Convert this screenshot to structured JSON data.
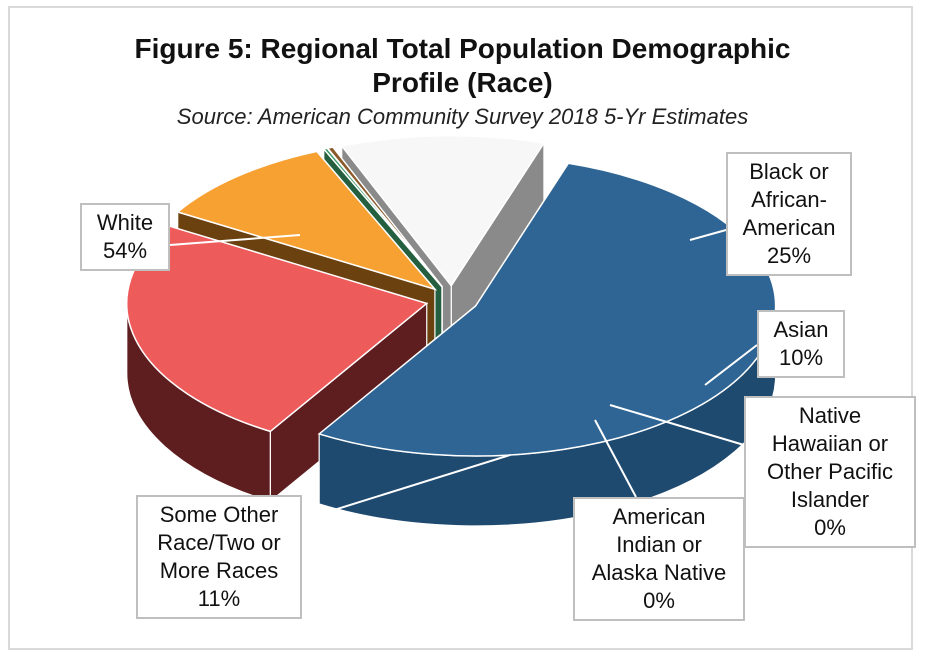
{
  "chart_data": {
    "type": "pie",
    "title": "Figure 5: Regional Total Population Demographic Profile (Race)",
    "title_lines": [
      "Figure 5: Regional Total Population Demographic",
      "Profile (Race)"
    ],
    "subtitle": "Source: American Community Survey 2018 5-Yr Estimates",
    "legend": "none",
    "slices": [
      {
        "key": "white",
        "label_lines": [
          "White",
          "54%"
        ],
        "name": "White",
        "value": 54,
        "percent_label": "54%",
        "color": "#2e6594",
        "side_color": "#1f4a70"
      },
      {
        "key": "black",
        "label_lines": [
          "Black or",
          "African-",
          "American",
          "25%"
        ],
        "name": "Black or African-American",
        "value": 25,
        "percent_label": "25%",
        "color": "#ee5b5b",
        "side_color": "#5e1e20"
      },
      {
        "key": "asian",
        "label_lines": [
          "Asian",
          "10%"
        ],
        "name": "Asian",
        "value": 10,
        "percent_label": "10%",
        "color": "#f7a133",
        "side_color": "#6b420f"
      },
      {
        "key": "nhpi",
        "label_lines": [
          "Native",
          "Hawaiian or",
          "Other Pacific",
          "Islander",
          "0%"
        ],
        "name": "Native Hawaiian or Other Pacific Islander",
        "value": 0.2,
        "percent_label": "0%",
        "color": "#3a9a6a",
        "side_color": "#24603f"
      },
      {
        "key": "aian",
        "label_lines": [
          "American",
          "Indian or",
          "Alaska Native",
          "0%"
        ],
        "name": "American Indian or Alaska Native",
        "value": 0.3,
        "percent_label": "0%",
        "color": "#8c5a2a",
        "side_color": "#4a2f12"
      },
      {
        "key": "other",
        "label_lines": [
          "Some Other",
          "Race/Two or",
          "More Races",
          "11%"
        ],
        "name": "Some Other Race/Two or More Races",
        "value": 11,
        "percent_label": "11%",
        "color": "#f7f7f7",
        "side_color": "#8a8a8a"
      }
    ]
  }
}
